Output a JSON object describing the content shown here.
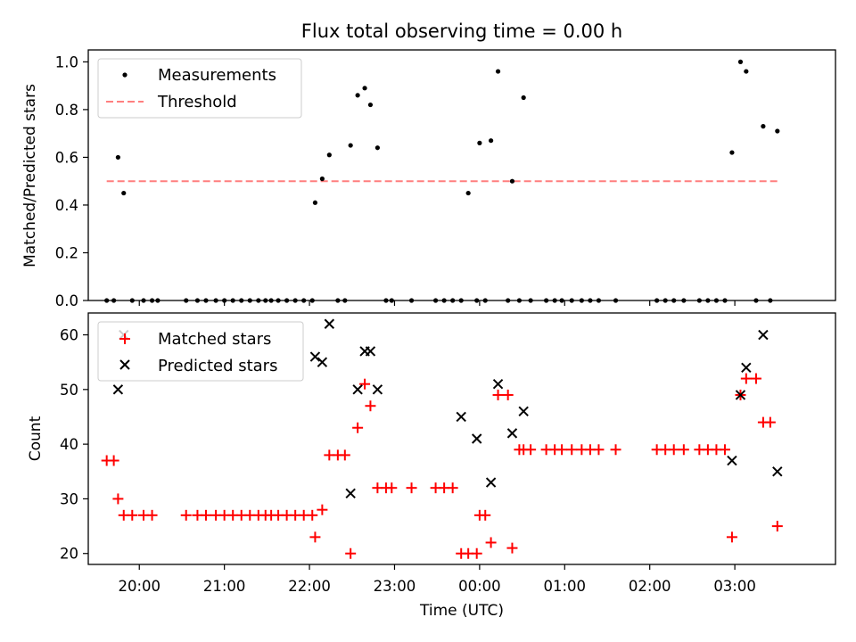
{
  "chart_data": [
    {
      "type": "scatter",
      "title": "Flux total observing time = 0.00 h",
      "xlabel": "",
      "ylabel": "Matched/Predicted stars",
      "ylim": [
        0.0,
        1.05
      ],
      "xlim": [
        "19:24",
        "28:11"
      ],
      "yticks": [
        "0.0",
        "0.2",
        "0.4",
        "0.6",
        "0.8",
        "1.0"
      ],
      "ytick_values": [
        0.0,
        0.2,
        0.4,
        0.6,
        0.8,
        1.0
      ],
      "grid": false,
      "legend_position": "top-left",
      "series": [
        {
          "name": "Measurements",
          "marker": "dot",
          "color": "#000000",
          "points": [
            [
              "19:37",
              0
            ],
            [
              "19:42",
              0
            ],
            [
              "19:45",
              0.6
            ],
            [
              "19:49",
              0.45
            ],
            [
              "19:55",
              0
            ],
            [
              "20:03",
              0
            ],
            [
              "20:09",
              0
            ],
            [
              "20:13",
              0
            ],
            [
              "20:33",
              0
            ],
            [
              "20:41",
              0
            ],
            [
              "20:47",
              0
            ],
            [
              "20:54",
              0
            ],
            [
              "21:00",
              0
            ],
            [
              "21:06",
              0
            ],
            [
              "21:12",
              0
            ],
            [
              "21:18",
              0
            ],
            [
              "21:24",
              0
            ],
            [
              "21:29",
              0
            ],
            [
              "21:33",
              0
            ],
            [
              "21:38",
              0
            ],
            [
              "21:44",
              0
            ],
            [
              "21:50",
              0
            ],
            [
              "21:56",
              0
            ],
            [
              "22:02",
              0
            ],
            [
              "22:04",
              0.41
            ],
            [
              "22:09",
              0.51
            ],
            [
              "22:14",
              0.61
            ],
            [
              "22:20",
              0
            ],
            [
              "22:25",
              0
            ],
            [
              "22:29",
              0.65
            ],
            [
              "22:34",
              0.86
            ],
            [
              "22:39",
              0.89
            ],
            [
              "22:43",
              0.82
            ],
            [
              "22:48",
              0.64
            ],
            [
              "22:54",
              0
            ],
            [
              "22:58",
              0
            ],
            [
              "23:12",
              0
            ],
            [
              "23:29",
              0
            ],
            [
              "23:35",
              0
            ],
            [
              "23:41",
              0
            ],
            [
              "23:47",
              0
            ],
            [
              "23:52",
              0.45
            ],
            [
              "23:58",
              0
            ],
            [
              "24:00",
              0.66
            ],
            [
              "24:04",
              0
            ],
            [
              "24:08",
              0.67
            ],
            [
              "24:13",
              0.96
            ],
            [
              "24:20",
              0
            ],
            [
              "24:23",
              0.5
            ],
            [
              "24:28",
              0
            ],
            [
              "24:31",
              0.85
            ],
            [
              "24:36",
              0
            ],
            [
              "24:47",
              0
            ],
            [
              "24:53",
              0
            ],
            [
              "24:58",
              0
            ],
            [
              "25:05",
              0
            ],
            [
              "25:12",
              0
            ],
            [
              "25:18",
              0
            ],
            [
              "25:24",
              0
            ],
            [
              "25:36",
              0
            ],
            [
              "26:05",
              0
            ],
            [
              "26:11",
              0
            ],
            [
              "26:17",
              0
            ],
            [
              "26:24",
              0
            ],
            [
              "26:35",
              0
            ],
            [
              "26:41",
              0
            ],
            [
              "26:47",
              0
            ],
            [
              "26:53",
              0
            ],
            [
              "26:58",
              0.62
            ],
            [
              "27:04",
              1.0
            ],
            [
              "27:08",
              0.96
            ],
            [
              "27:15",
              0
            ],
            [
              "27:20",
              0.73
            ],
            [
              "27:25",
              0
            ],
            [
              "27:30",
              0.71
            ]
          ]
        },
        {
          "name": "Threshold",
          "style": "dashed-line",
          "color": "#ff7f7f",
          "x": [
            "19:37",
            "27:30"
          ],
          "y": [
            0.5,
            0.5
          ]
        }
      ]
    },
    {
      "type": "scatter",
      "title": "",
      "xlabel": "Time (UTC)",
      "ylabel": "Count",
      "ylim": [
        18,
        64
      ],
      "xlim": [
        "19:24",
        "28:11"
      ],
      "yticks": [
        "20",
        "30",
        "40",
        "50",
        "60"
      ],
      "ytick_values": [
        20,
        30,
        40,
        50,
        60
      ],
      "xticks": [
        "20:00",
        "21:00",
        "22:00",
        "23:00",
        "00:00",
        "01:00",
        "02:00",
        "03:00"
      ],
      "xtick_values": [
        "20:00",
        "21:00",
        "22:00",
        "23:00",
        "24:00",
        "25:00",
        "26:00",
        "27:00"
      ],
      "grid": false,
      "legend_position": "top-left",
      "series": [
        {
          "name": "Matched stars",
          "marker": "plus",
          "color": "#ff0000",
          "points": [
            [
              "19:37",
              37
            ],
            [
              "19:42",
              37
            ],
            [
              "19:45",
              30
            ],
            [
              "19:49",
              27
            ],
            [
              "19:55",
              27
            ],
            [
              "20:03",
              27
            ],
            [
              "20:09",
              27
            ],
            [
              "20:33",
              27
            ],
            [
              "20:41",
              27
            ],
            [
              "20:47",
              27
            ],
            [
              "20:54",
              27
            ],
            [
              "21:00",
              27
            ],
            [
              "21:06",
              27
            ],
            [
              "21:12",
              27
            ],
            [
              "21:18",
              27
            ],
            [
              "21:24",
              27
            ],
            [
              "21:29",
              27
            ],
            [
              "21:33",
              27
            ],
            [
              "21:38",
              27
            ],
            [
              "21:44",
              27
            ],
            [
              "21:50",
              27
            ],
            [
              "21:56",
              27
            ],
            [
              "22:02",
              27
            ],
            [
              "22:04",
              23
            ],
            [
              "22:09",
              28
            ],
            [
              "22:14",
              38
            ],
            [
              "22:20",
              38
            ],
            [
              "22:25",
              38
            ],
            [
              "22:29",
              20
            ],
            [
              "22:34",
              43
            ],
            [
              "22:39",
              51
            ],
            [
              "22:43",
              47
            ],
            [
              "22:48",
              32
            ],
            [
              "22:54",
              32
            ],
            [
              "22:58",
              32
            ],
            [
              "23:12",
              32
            ],
            [
              "23:29",
              32
            ],
            [
              "23:35",
              32
            ],
            [
              "23:41",
              32
            ],
            [
              "23:47",
              20
            ],
            [
              "23:52",
              20
            ],
            [
              "23:58",
              20
            ],
            [
              "24:00",
              27
            ],
            [
              "24:04",
              27
            ],
            [
              "24:08",
              22
            ],
            [
              "24:13",
              49
            ],
            [
              "24:20",
              49
            ],
            [
              "24:23",
              21
            ],
            [
              "24:28",
              39
            ],
            [
              "24:31",
              39
            ],
            [
              "24:36",
              39
            ],
            [
              "24:47",
              39
            ],
            [
              "24:53",
              39
            ],
            [
              "24:58",
              39
            ],
            [
              "25:05",
              39
            ],
            [
              "25:12",
              39
            ],
            [
              "25:18",
              39
            ],
            [
              "25:24",
              39
            ],
            [
              "25:36",
              39
            ],
            [
              "26:05",
              39
            ],
            [
              "26:11",
              39
            ],
            [
              "26:17",
              39
            ],
            [
              "26:24",
              39
            ],
            [
              "26:35",
              39
            ],
            [
              "26:41",
              39
            ],
            [
              "26:47",
              39
            ],
            [
              "26:53",
              39
            ],
            [
              "26:58",
              23
            ],
            [
              "27:04",
              49
            ],
            [
              "27:08",
              52
            ],
            [
              "27:15",
              52
            ],
            [
              "27:20",
              44
            ],
            [
              "27:25",
              44
            ],
            [
              "27:30",
              25
            ]
          ]
        },
        {
          "name": "Predicted stars",
          "marker": "x",
          "color": "#000000",
          "points": [
            [
              "19:45",
              50
            ],
            [
              "19:49",
              60
            ],
            [
              "22:04",
              56
            ],
            [
              "22:09",
              55
            ],
            [
              "22:14",
              62
            ],
            [
              "22:29",
              31
            ],
            [
              "22:34",
              50
            ],
            [
              "22:39",
              57
            ],
            [
              "22:43",
              57
            ],
            [
              "22:48",
              50
            ],
            [
              "23:47",
              45
            ],
            [
              "23:58",
              41
            ],
            [
              "24:08",
              33
            ],
            [
              "24:13",
              51
            ],
            [
              "24:23",
              42
            ],
            [
              "24:31",
              46
            ],
            [
              "26:58",
              37
            ],
            [
              "27:04",
              49
            ],
            [
              "27:08",
              54
            ],
            [
              "27:20",
              60
            ],
            [
              "27:30",
              35
            ]
          ]
        }
      ]
    }
  ]
}
